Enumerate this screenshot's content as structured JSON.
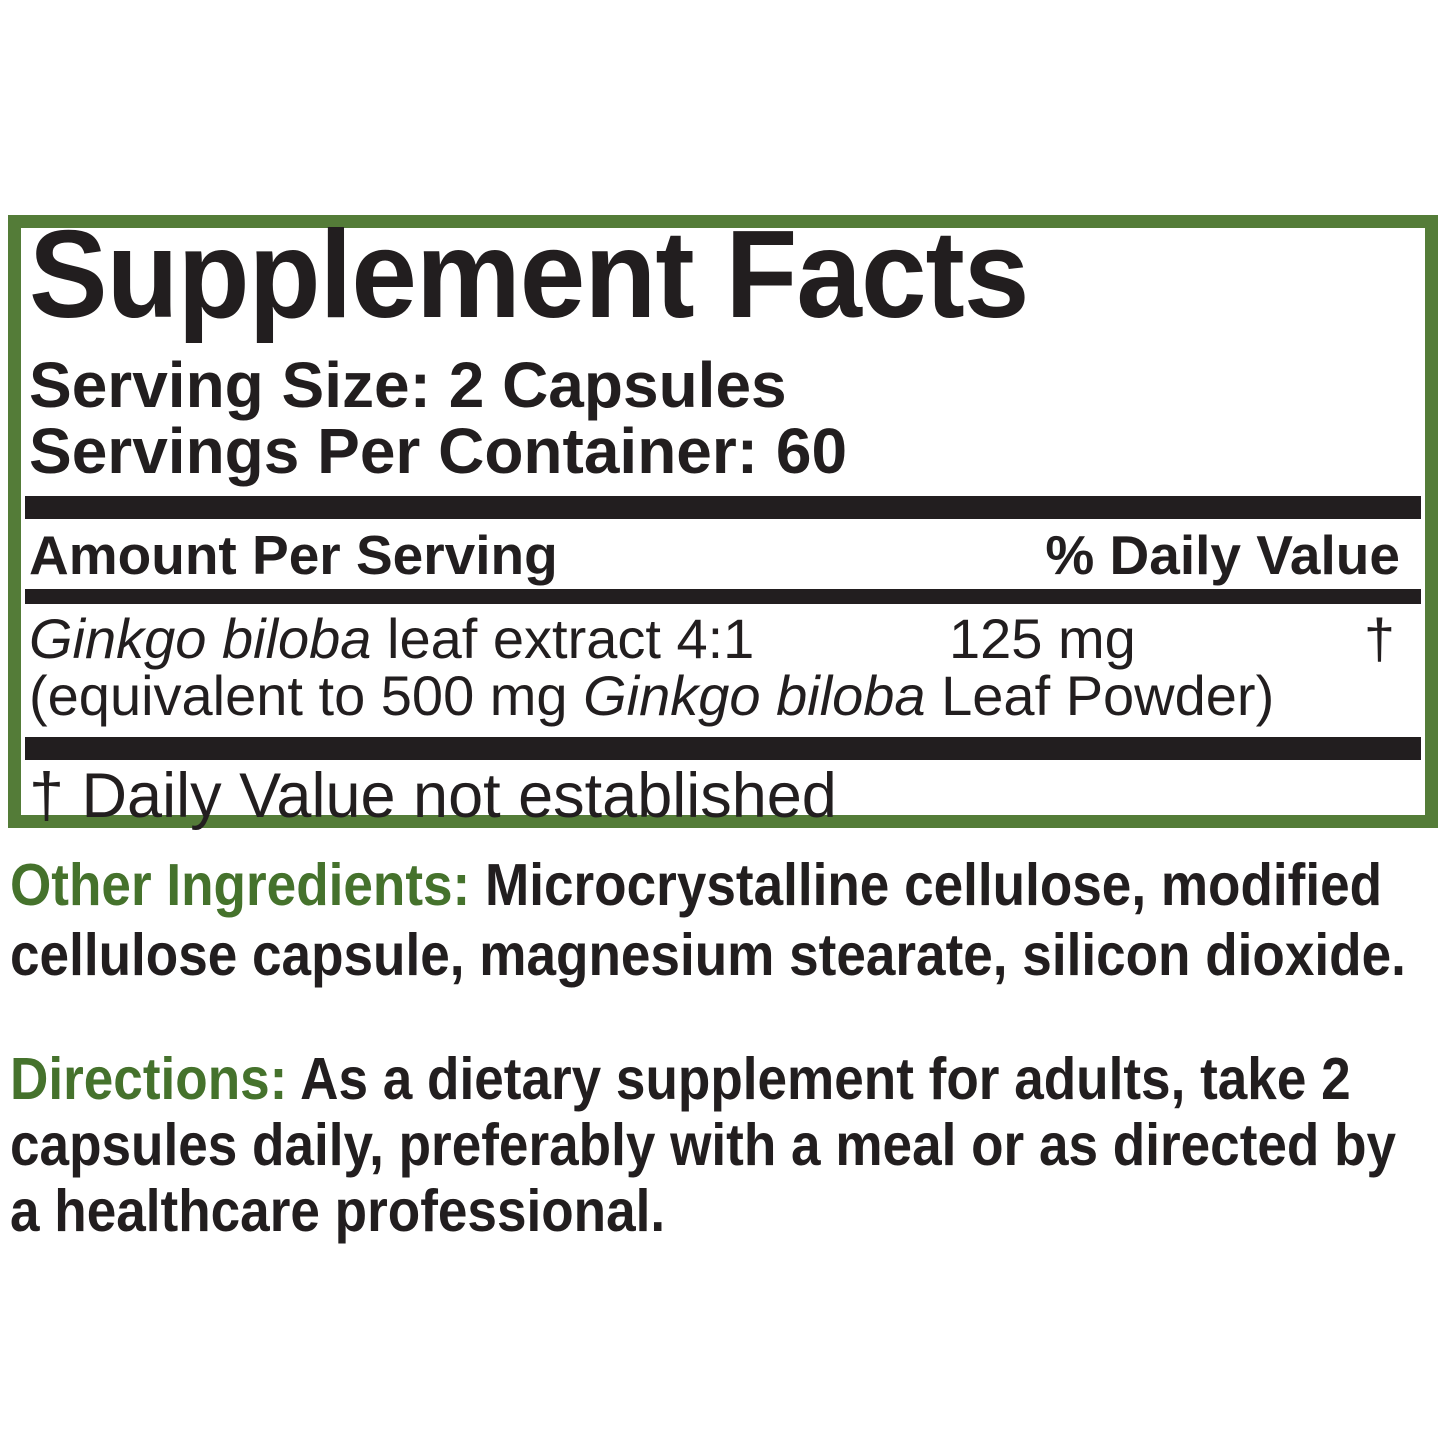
{
  "colors": {
    "border_green": "#547c38",
    "label_green": "#45722c",
    "ink": "#221e1f"
  },
  "panel": {
    "title": "Supplement Facts",
    "serving_size": "Serving Size: 2 Capsules",
    "servings_per_container": "Servings Per Container: 60",
    "columns": {
      "amount_header": "Amount Per Serving",
      "daily_value_header": "% Daily Value"
    },
    "ingredients": [
      {
        "name_italic": "Ginkgo biloba",
        "name_rest": " leaf extract 4:1",
        "amount": "125 mg",
        "daily_value": "†",
        "detail_pre": "(equivalent to 500 mg ",
        "detail_italic": "Ginkgo biloba",
        "detail_post": " Leaf Powder)"
      }
    ],
    "footnote": "† Daily Value not established"
  },
  "other_ingredients": {
    "label": "Other Ingredients:",
    "line1": " Microcrystalline cellulose, modified",
    "line2": "cellulose capsule, magnesium stearate, silicon dioxide."
  },
  "directions": {
    "label": "Directions:",
    "line1": " As a dietary supplement for adults, take 2",
    "line2": "capsules daily, preferably with a meal or as directed by",
    "line3": "a healthcare professional."
  }
}
